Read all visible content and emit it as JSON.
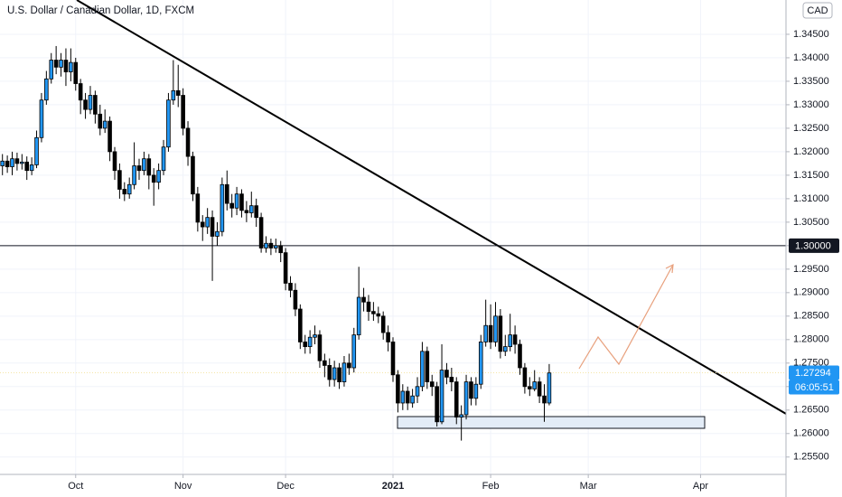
{
  "chart_data": {
    "type": "candlestick",
    "title": "U.S. Dollar / Canadian Dollar, 1D, FXCM",
    "currency": "CAD",
    "up_color": "#2196f3",
    "down_color": "#000000",
    "xlim": [
      -0.5,
      160.5
    ],
    "ylim": [
      1.2513,
      1.3523
    ],
    "xticks": [
      {
        "value": 15,
        "label": "Oct"
      },
      {
        "value": 37,
        "label": "Nov"
      },
      {
        "value": 58,
        "label": "Dec"
      },
      {
        "value": 80,
        "label": "2021"
      },
      {
        "value": 100,
        "label": "Feb"
      },
      {
        "value": 120,
        "label": "Mar"
      },
      {
        "value": 143,
        "label": "Apr"
      }
    ],
    "yticks": [
      {
        "value": 1.255,
        "label": "1.25500"
      },
      {
        "value": 1.26,
        "label": "1.26000"
      },
      {
        "value": 1.265,
        "label": "1.26500"
      },
      {
        "value": 1.27,
        "label": "1.27000"
      },
      {
        "value": 1.275,
        "label": "1.27500"
      },
      {
        "value": 1.28,
        "label": "1.28000"
      },
      {
        "value": 1.285,
        "label": "1.28500"
      },
      {
        "value": 1.29,
        "label": "1.29000"
      },
      {
        "value": 1.295,
        "label": "1.29500"
      },
      {
        "value": 1.3,
        "label": "1.30000"
      },
      {
        "value": 1.305,
        "label": "1.30500"
      },
      {
        "value": 1.31,
        "label": "1.31000"
      },
      {
        "value": 1.315,
        "label": "1.31500"
      },
      {
        "value": 1.32,
        "label": "1.32000"
      },
      {
        "value": 1.325,
        "label": "1.32500"
      },
      {
        "value": 1.33,
        "label": "1.33000"
      },
      {
        "value": 1.335,
        "label": "1.33500"
      },
      {
        "value": 1.34,
        "label": "1.34000"
      },
      {
        "value": 1.345,
        "label": "1.34500"
      }
    ],
    "price_level": {
      "value": 1.3,
      "label": "1.30000"
    },
    "last_price": {
      "value": 1.27294,
      "label": "1.27294"
    },
    "countdown": "06:05:51",
    "open": [
      1.317,
      1.318,
      1.3168,
      1.3185,
      1.3175,
      1.3178,
      1.316,
      1.3172,
      1.323,
      1.331,
      1.3355,
      1.3395,
      1.338,
      1.3395,
      1.337,
      1.339,
      1.3345,
      1.331,
      1.329,
      1.332,
      1.328,
      1.325,
      1.3265,
      1.32,
      1.316,
      1.312,
      1.311,
      1.313,
      1.317,
      1.316,
      1.3185,
      1.315,
      1.3135,
      1.316,
      1.321,
      1.331,
      1.333,
      1.332,
      1.325,
      1.319,
      1.311,
      1.305,
      1.304,
      1.306,
      1.302,
      1.303,
      1.313,
      1.309,
      1.308,
      1.311,
      1.3075,
      1.307,
      1.3085,
      1.306,
      1.2995,
      1.3005,
      1.2995,
      1.3,
      1.2985,
      1.292,
      1.2905,
      1.2865,
      1.2795,
      1.2785,
      1.2805,
      1.281,
      1.2755,
      1.2745,
      1.2715,
      1.274,
      1.271,
      1.275,
      1.274,
      1.281,
      1.289,
      1.288,
      1.286,
      1.2855,
      1.285,
      1.2815,
      1.2795,
      1.2725,
      1.2665,
      1.269,
      1.2665,
      1.268,
      1.27,
      1.2775,
      1.271,
      1.27,
      1.2625,
      1.2735,
      1.272,
      1.271,
      1.2635,
      1.264,
      1.271,
      1.2675,
      1.2705,
      1.2795,
      1.283,
      1.2795,
      1.285,
      1.2775,
      1.2785,
      1.281,
      1.279,
      1.274,
      1.27,
      1.2695,
      1.271,
      1.268,
      1.2665
    ],
    "close": [
      1.318,
      1.3168,
      1.3185,
      1.3175,
      1.3178,
      1.316,
      1.3172,
      1.323,
      1.331,
      1.3355,
      1.3395,
      1.338,
      1.3395,
      1.337,
      1.339,
      1.3345,
      1.331,
      1.329,
      1.332,
      1.328,
      1.325,
      1.3265,
      1.32,
      1.316,
      1.312,
      1.311,
      1.313,
      1.317,
      1.316,
      1.3185,
      1.315,
      1.3135,
      1.316,
      1.321,
      1.331,
      1.333,
      1.332,
      1.325,
      1.319,
      1.311,
      1.305,
      1.304,
      1.306,
      1.302,
      1.303,
      1.313,
      1.309,
      1.308,
      1.311,
      1.3075,
      1.307,
      1.3085,
      1.306,
      1.2995,
      1.3005,
      1.2995,
      1.3,
      1.2985,
      1.292,
      1.2905,
      1.2865,
      1.2795,
      1.2785,
      1.2805,
      1.281,
      1.2755,
      1.2745,
      1.2715,
      1.274,
      1.271,
      1.275,
      1.274,
      1.281,
      1.289,
      1.288,
      1.286,
      1.2855,
      1.285,
      1.2815,
      1.2795,
      1.2725,
      1.2665,
      1.269,
      1.2665,
      1.268,
      1.27,
      1.2775,
      1.271,
      1.27,
      1.2625,
      1.2735,
      1.272,
      1.271,
      1.2635,
      1.264,
      1.271,
      1.2675,
      1.2705,
      1.2795,
      1.283,
      1.2795,
      1.285,
      1.2775,
      1.2785,
      1.281,
      1.279,
      1.274,
      1.27,
      1.2695,
      1.271,
      1.268,
      1.2665,
      1.2729
    ],
    "high": [
      1.3195,
      1.3192,
      1.32,
      1.3198,
      1.3195,
      1.319,
      1.3188,
      1.3245,
      1.3325,
      1.3372,
      1.341,
      1.3425,
      1.341,
      1.342,
      1.342,
      1.34,
      1.3355,
      1.3325,
      1.334,
      1.333,
      1.33,
      1.329,
      1.3275,
      1.321,
      1.3175,
      1.3135,
      1.3145,
      1.322,
      1.3185,
      1.32,
      1.3195,
      1.3165,
      1.3175,
      1.3225,
      1.3325,
      1.3395,
      1.3385,
      1.3335,
      1.3265,
      1.32,
      1.3125,
      1.3065,
      1.308,
      1.3075,
      1.305,
      1.3145,
      1.316,
      1.311,
      1.3125,
      1.312,
      1.3095,
      1.3115,
      1.31,
      1.307,
      1.302,
      1.3015,
      1.3015,
      1.301,
      1.2995,
      1.2935,
      1.292,
      1.2875,
      1.281,
      1.282,
      1.283,
      1.282,
      1.277,
      1.276,
      1.2755,
      1.275,
      1.2765,
      1.277,
      1.2825,
      1.2955,
      1.291,
      1.2895,
      1.288,
      1.287,
      1.286,
      1.283,
      1.2805,
      1.2735,
      1.2705,
      1.27,
      1.2695,
      1.272,
      1.2795,
      1.2785,
      1.2725,
      1.271,
      1.279,
      1.275,
      1.274,
      1.272,
      1.266,
      1.2725,
      1.272,
      1.272,
      1.281,
      1.2885,
      1.2875,
      1.288,
      1.2865,
      1.281,
      1.2855,
      1.283,
      1.28,
      1.275,
      1.272,
      1.2735,
      1.272,
      1.2705,
      1.2748
    ],
    "low": [
      1.315,
      1.3155,
      1.315,
      1.316,
      1.3162,
      1.314,
      1.315,
      1.3165,
      1.322,
      1.33,
      1.3345,
      1.3365,
      1.336,
      1.334,
      1.335,
      1.333,
      1.328,
      1.327,
      1.328,
      1.326,
      1.3235,
      1.324,
      1.318,
      1.314,
      1.31,
      1.3095,
      1.31,
      1.312,
      1.314,
      1.315,
      1.312,
      1.3085,
      1.312,
      1.315,
      1.32,
      1.33,
      1.3295,
      1.3235,
      1.317,
      1.3095,
      1.303,
      1.301,
      1.3025,
      1.2925,
      1.3,
      1.302,
      1.3075,
      1.306,
      1.3065,
      1.306,
      1.305,
      1.306,
      1.304,
      1.2985,
      1.2985,
      1.298,
      1.2985,
      1.2965,
      1.2905,
      1.289,
      1.285,
      1.278,
      1.277,
      1.277,
      1.279,
      1.274,
      1.272,
      1.27,
      1.27,
      1.2695,
      1.27,
      1.2725,
      1.273,
      1.28,
      1.286,
      1.284,
      1.284,
      1.2835,
      1.28,
      1.2775,
      1.271,
      1.2645,
      1.265,
      1.265,
      1.2655,
      1.2665,
      1.269,
      1.2695,
      1.268,
      1.2615,
      1.262,
      1.2705,
      1.269,
      1.262,
      1.2585,
      1.263,
      1.266,
      1.266,
      1.2695,
      1.2785,
      1.278,
      1.2785,
      1.276,
      1.2765,
      1.2775,
      1.277,
      1.2725,
      1.2685,
      1.268,
      1.269,
      1.2665,
      1.2625,
      1.266
    ]
  }
}
